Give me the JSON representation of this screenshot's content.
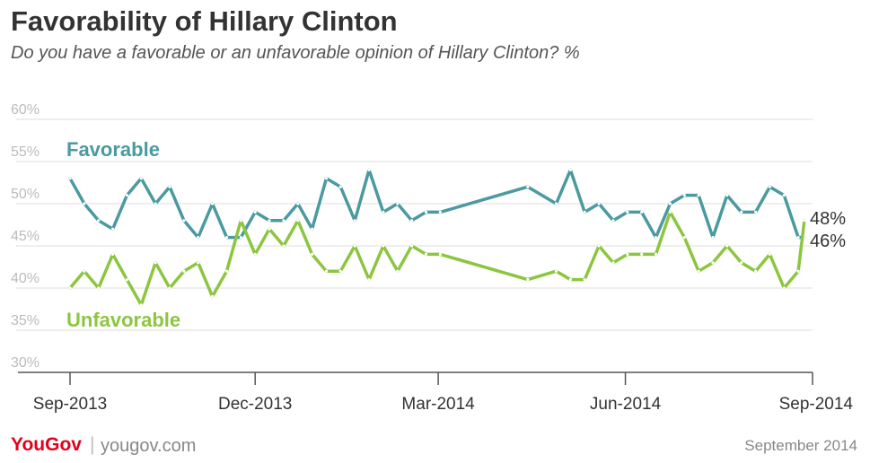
{
  "header": {
    "title": "Favorability of Hillary Clinton",
    "subtitle": "Do you have a favorable or an unfavorable opinion of Hillary Clinton? %"
  },
  "footer": {
    "brand": "YouGov",
    "site": "yougov.com",
    "date": "September 2014"
  },
  "colors": {
    "favorable": "#4a9aa0",
    "unfavorable": "#8cc63f",
    "grid": "#dddddd",
    "axis": "#555555",
    "tick": "#bbbbbb"
  },
  "chart_data": {
    "type": "line",
    "title": "Favorability of Hillary Clinton",
    "subtitle": "Do you have a favorable or an unfavorable opinion of Hillary Clinton? %",
    "x_tick_labels": [
      "Sep-2013",
      "Dec-2013",
      "Mar-2014",
      "Jun-2014",
      "Sep-2014"
    ],
    "y_tick_labels": [
      "30%",
      "35%",
      "40%",
      "45%",
      "50%",
      "55%",
      "60%"
    ],
    "ylim": [
      30,
      60
    ],
    "grid": true,
    "dates": [
      "2013-09-01",
      "2013-09-08",
      "2013-09-15",
      "2013-09-22",
      "2013-09-29",
      "2013-10-06",
      "2013-10-13",
      "2013-10-20",
      "2013-10-27",
      "2013-11-03",
      "2013-11-10",
      "2013-11-17",
      "2013-11-24",
      "2013-12-01",
      "2013-12-08",
      "2013-12-15",
      "2013-12-22",
      "2013-12-29",
      "2014-01-05",
      "2014-01-12",
      "2014-01-19",
      "2014-01-26",
      "2014-02-02",
      "2014-02-09",
      "2014-02-16",
      "2014-02-23",
      "2014-03-02",
      "2014-04-14",
      "2014-04-28",
      "2014-05-05",
      "2014-05-12",
      "2014-05-19",
      "2014-05-26",
      "2014-06-02",
      "2014-06-09",
      "2014-06-16",
      "2014-06-23",
      "2014-06-30",
      "2014-07-07",
      "2014-07-14",
      "2014-07-21",
      "2014-07-28",
      "2014-08-04",
      "2014-08-11",
      "2014-08-18",
      "2014-08-25"
    ],
    "series": [
      {
        "name": "Favorable",
        "end_label": "46%",
        "values": [
          53,
          50,
          48,
          47,
          51,
          53,
          50,
          52,
          48,
          46,
          50,
          46,
          46,
          49,
          48,
          48,
          50,
          47,
          53,
          52,
          48,
          54,
          49,
          50,
          48,
          49,
          49,
          52,
          50,
          54,
          49,
          50,
          48,
          49,
          49,
          46,
          50,
          51,
          51,
          46,
          51,
          49,
          49,
          52,
          51,
          46
        ]
      },
      {
        "name": "Unfavorable",
        "end_label": "48%",
        "values": [
          40,
          42,
          40,
          44,
          41,
          38,
          43,
          40,
          42,
          43,
          39,
          42,
          48,
          44,
          47,
          45,
          48,
          44,
          42,
          42,
          45,
          41,
          45,
          42,
          45,
          44,
          44,
          41,
          42,
          41,
          41,
          45,
          43,
          44,
          44,
          44,
          49,
          46,
          42,
          43,
          45,
          43,
          42,
          44,
          40,
          42
        ]
      }
    ],
    "extra_points": {
      "Favorable": [
        {
          "date": "2014-08-28",
          "value": 46
        }
      ],
      "Unfavorable": [
        {
          "date": "2014-08-28",
          "value": 48
        }
      ]
    }
  }
}
